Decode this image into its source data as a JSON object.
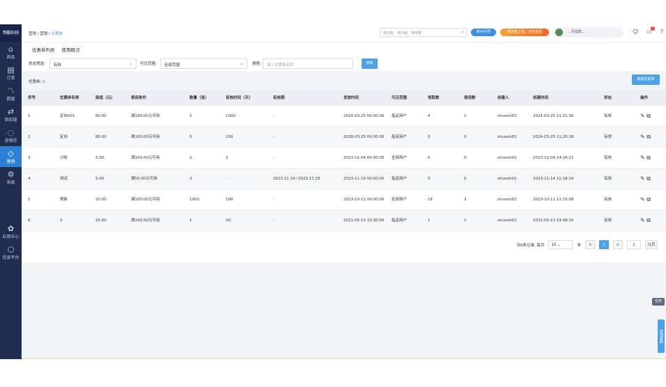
{
  "sidebar": {
    "logo": "哥酷科技",
    "items": [
      {
        "label": "商品",
        "icon": "basket-icon"
      },
      {
        "label": "订单",
        "icon": "document-icon"
      },
      {
        "label": "数据",
        "icon": "chart-icon"
      },
      {
        "label": "供应链",
        "icon": "sync-icon"
      },
      {
        "label": "进销存",
        "icon": "cycle-icon"
      },
      {
        "label": "营销",
        "icon": "tag-icon",
        "active": true
      },
      {
        "label": "系统",
        "icon": "gear-icon"
      },
      {
        "label": "应用中心",
        "icon": "apps-icon"
      },
      {
        "label": "信息平台",
        "icon": "cube-icon"
      }
    ]
  },
  "header": {
    "breadcrumb": [
      "营销",
      "营销",
      "优惠券"
    ],
    "search_placeholder": "搜功能、搜问题、搜单据",
    "guide": "新手引导",
    "new_feature": "新功能上线，点击查看",
    "user": "…行云优…",
    "notif_count": "1"
  },
  "tabs": [
    "优惠券列表",
    "使用概况"
  ],
  "filters": {
    "status_label": "状态筛选:",
    "status_value": "有效",
    "scope_label": "可见范围:",
    "scope_value": "全部范围",
    "search_label": "搜索:",
    "search_placeholder": "输入优惠券名称",
    "search_button": "搜索"
  },
  "summary": {
    "label": "优惠券:",
    "count": "6",
    "new_button": "新建优惠券"
  },
  "table": {
    "columns": [
      "序号",
      "优惠券名称",
      "面值（元）",
      "使用条件",
      "数量（张）",
      "有效时间（天）",
      "有效期",
      "发放时间",
      "可见范围",
      "领取数",
      "使用数",
      "创建人",
      "创建时间",
      "状态",
      "操作"
    ],
    "rows": [
      [
        "1",
        "定向001",
        "80.00",
        "满100.00元可用",
        "5",
        "1000",
        "-",
        "2024-03-25 00:00:00",
        "指定商户",
        "4",
        "1",
        "shceshi01",
        "2024-03-25 11:21:36",
        "有效"
      ],
      [
        "2",
        "定向",
        "80.00",
        "满100.00元可用",
        "5",
        "100",
        "-",
        "2028-03-25 00:00:00",
        "指定商户",
        "0",
        "0",
        "shceshi01",
        "2024-03-25 11:20:18",
        "有效"
      ],
      [
        "3",
        "分帐",
        "5.00",
        "满100.00元可用",
        "2",
        "2",
        "-",
        "2023-12-04 00:00:00",
        "全部商户",
        "5",
        "0",
        "shceshi01",
        "2023-12-04 14:26:21",
        "有效"
      ],
      [
        "4",
        "测试",
        "5.00",
        "满50.00元可用",
        "2",
        "-",
        "2023.11.19~2023.11.25",
        "2023-11-19 00:00:00",
        "指定商户",
        "0",
        "0",
        "shceshi01",
        "2023-11-14 11:18:19",
        "有效"
      ],
      [
        "5",
        "预售",
        "20.00",
        "满100.00元可用",
        "1000",
        "100",
        "-",
        "2023-10-11 00:00:00",
        "全部商户",
        "16",
        "3",
        "shceshi01",
        "2023-10-11 11:15:08",
        "有效"
      ],
      [
        "6",
        "2",
        "25.00",
        "满100.00元可用",
        "1",
        "20",
        "-",
        "2021-05-13 13:30:00",
        "指定商户",
        "1",
        "1",
        "shceshi01",
        "2021-05-13 13:48:10",
        "有效"
      ]
    ]
  },
  "pager": {
    "total": "共6条记录, 每页",
    "size": "10",
    "unit": "条",
    "prev": "<",
    "page": "1",
    "next": ">",
    "jump": "1",
    "pages": "/1页"
  },
  "float": {
    "task": "任务",
    "service": "在线客服"
  }
}
